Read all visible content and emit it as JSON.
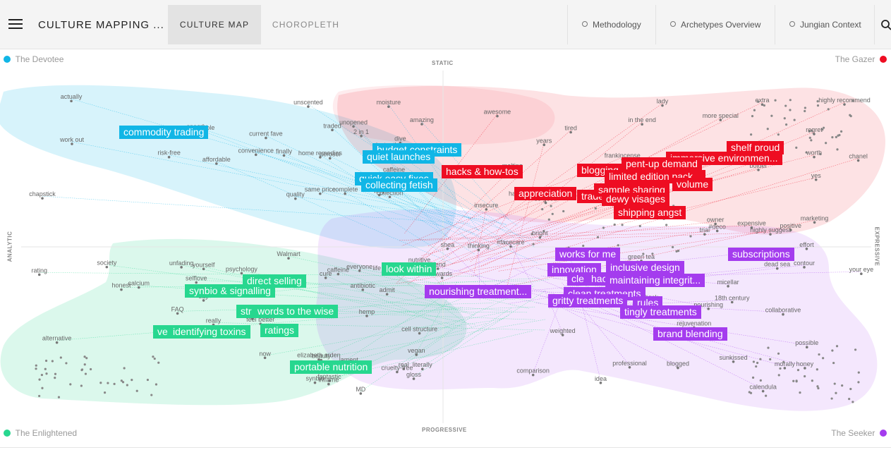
{
  "header": {
    "title": "CULTURE MAPPING ...",
    "tabs": [
      {
        "label": "CULTURE MAP",
        "active": true
      },
      {
        "label": "CHOROPLETH",
        "active": false
      }
    ],
    "links": [
      "Methodology",
      "Archetypes Overview",
      "Jungian Context"
    ]
  },
  "map": {
    "corners": {
      "top_left": "The Devotee",
      "top_right": "The Gazer",
      "bottom_left": "The Enlightened",
      "bottom_right": "The Seeker"
    },
    "axes": {
      "top": "STATIC",
      "bottom": "PROGRESSIVE",
      "left": "ANALYTIC",
      "right": "EXPRESSIVE"
    },
    "colors": {
      "devotee": "#11b6e6",
      "gazer": "#ee0d22",
      "enlightened": "#27d78f",
      "seeker": "#a43cee"
    },
    "tags": {
      "blue": [
        "commodity trading",
        "budget constraints",
        "quiet launches",
        "quick easy fixes",
        "collecting fetish"
      ],
      "red": [
        "shelf proud",
        "immersive environmen...",
        "pent-up demand",
        "hacks & how-tos",
        "blogging",
        "limited edition pack...",
        "volume",
        "appreciation",
        "trade",
        "sample sharing",
        "dewy visages",
        "shipping angst"
      ],
      "green": [
        "look within",
        "direct selling",
        "synbio & signalling",
        "words to the wise",
        "str",
        "ve",
        "identifying toxins",
        "ratings",
        "portable nutrition"
      ],
      "purple": [
        "subscriptions",
        "works for me",
        "innovation",
        "inclusive design",
        "maintaining integrit...",
        "nourishing treatment...",
        "clean treatments",
        "cle",
        "hac",
        "gritty treatments",
        "rules",
        "tingly treatments",
        "brand blending"
      ]
    },
    "terms": {
      "blue": [
        "chapstick",
        "home remedies",
        "aerosol",
        "unopened",
        "unscented",
        "college budget",
        "caffeine",
        "collection",
        "2 in 1",
        "simple",
        "same price",
        "convenience",
        "moisture",
        "quality",
        "speedy",
        "risk-free",
        "instantly",
        "finally",
        "dive",
        "current fave",
        "complete",
        "work out",
        "amazing",
        "affordable",
        "why",
        "traded",
        "actually"
      ],
      "red": [
        "bolder",
        "regret",
        "melting",
        "#deco",
        "bright",
        "tired",
        "insecure",
        "lady",
        "happy",
        "marketing",
        "wearing",
        "worth",
        "yes",
        "ultimate",
        "years",
        "owner",
        "more special",
        "highly suggest",
        "in the end",
        "extended",
        "extra",
        "so good",
        "used",
        "positive",
        "highly recommend",
        "expensive",
        "awesome",
        "trial",
        "anyone",
        "chanel",
        "frankincense"
      ],
      "green": [
        "MD",
        "psychology",
        "society",
        "feel better",
        "say",
        "yourself",
        "lament",
        "literally",
        "FAQ",
        "now",
        "fantastic",
        "really",
        "unfading",
        "beauty",
        "honest",
        "real",
        "trust",
        "admit",
        "selflove",
        "cruelty-free",
        "life lessons",
        "rating",
        "synbio",
        "vegan",
        "Walmart",
        "caffeine",
        "cell structure",
        "elizabeth arden",
        "alternative",
        "calcium",
        "antibiotic",
        "chemicals",
        "everyone",
        "hemp",
        "inflame",
        "cure",
        "nutritive",
        "gloss"
      ],
      "purple": [
        "#facecare",
        "light",
        "shea",
        "professional",
        "18th century",
        "calendula",
        "dead sea",
        "nourishing",
        "green tea",
        "wash",
        "thinking",
        "effort",
        "idea",
        "your eye",
        "blend",
        "comparison",
        "know",
        "possible",
        "morally",
        "micellar",
        "contour",
        "collaborative",
        "awards",
        "blogged",
        "honey",
        "face",
        "hack",
        "sunkissed",
        "rejuvenation",
        "weighted"
      ]
    }
  }
}
